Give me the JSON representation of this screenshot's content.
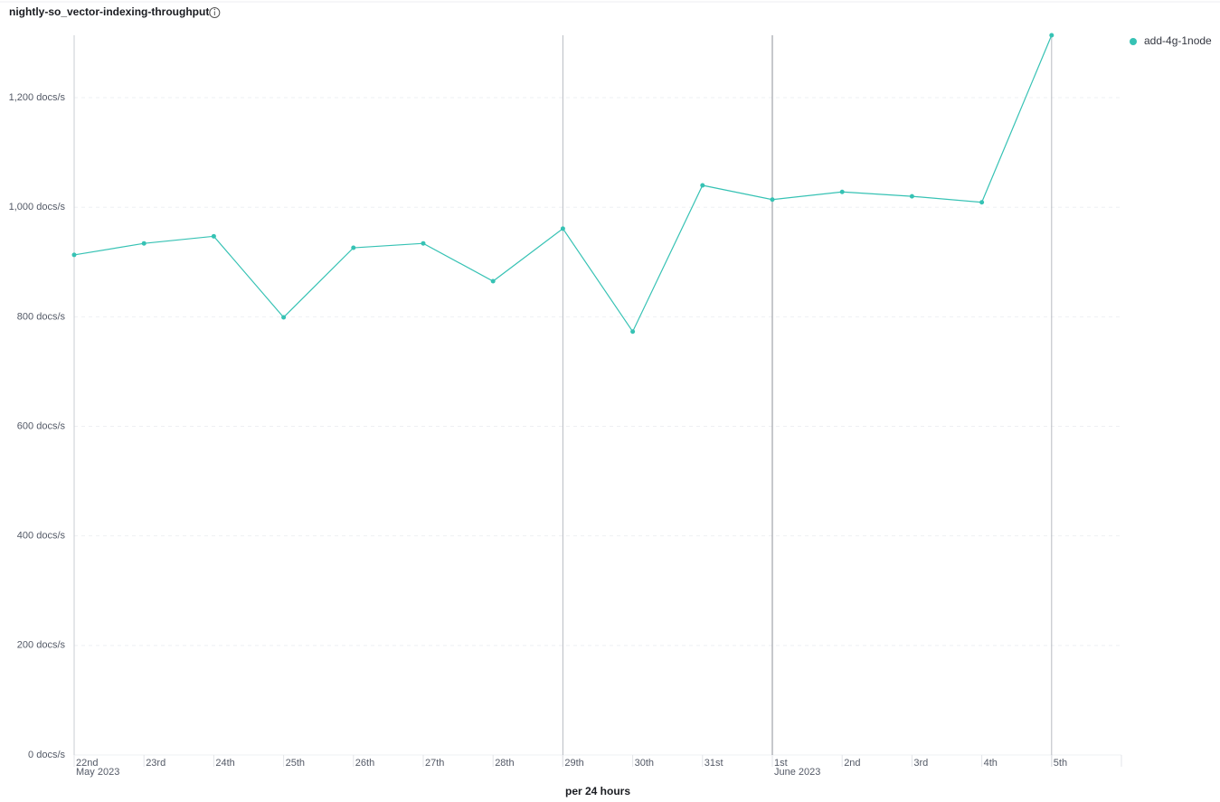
{
  "chart_data": {
    "type": "line",
    "title": "nightly-so_vector-indexing-throughput",
    "x_label": "per 24 hours",
    "categories": [
      "22nd",
      "23rd",
      "24th",
      "25th",
      "26th",
      "27th",
      "28th",
      "29th",
      "30th",
      "31st",
      "1st",
      "2nd",
      "3rd",
      "4th",
      "5th"
    ],
    "x_sublabels": [
      "May 2023",
      null,
      null,
      null,
      null,
      null,
      null,
      null,
      null,
      null,
      "June 2023",
      null,
      null,
      null,
      null
    ],
    "series": [
      {
        "name": "add-4g-1node",
        "color": "#36c2b4",
        "values": [
          913,
          934,
          947,
          799,
          926,
          934,
          865,
          961,
          773,
          1040,
          1014,
          1028,
          1020,
          1009,
          1314
        ]
      }
    ],
    "ylim": [
      0,
      1314
    ],
    "yticks": [
      {
        "value": 0,
        "label": "0 docs/s"
      },
      {
        "value": 200,
        "label": "200 docs/s"
      },
      {
        "value": 400,
        "label": "400 docs/s"
      },
      {
        "value": 600,
        "label": "600 docs/s"
      },
      {
        "value": 800,
        "label": "800 docs/s"
      },
      {
        "value": 1000,
        "label": "1,000 docs/s"
      },
      {
        "value": 1200,
        "label": "1,200 docs/s"
      }
    ],
    "grid": true
  }
}
